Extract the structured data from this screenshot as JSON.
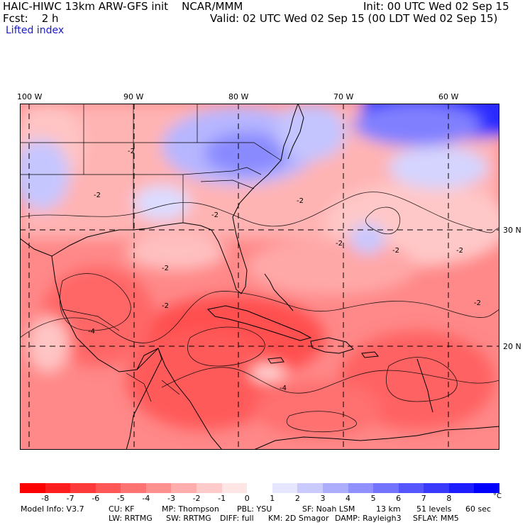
{
  "header": {
    "title_left": "HAIC-HIWC 13km ARW-GFS init    NCAR/MMM",
    "init": "Init: 00 UTC Wed 02 Sep 15",
    "fcst": "Fcst:    2 h",
    "valid": "Valid: 02 UTC Wed 02 Sep 15 (00 LDT Wed 02 Sep 15)",
    "field": "Lifted index"
  },
  "map": {
    "lon_labels": [
      "100 W",
      "90 W",
      "80 W",
      "70 W",
      "60 W"
    ],
    "lat_labels": [
      "30 N",
      "20 N"
    ],
    "contour_labels": [
      "-2",
      "-4"
    ]
  },
  "colorbar": {
    "ticks": [
      "-8",
      "-7",
      "-6",
      "-5",
      "-4",
      "-3",
      "-2",
      "-1",
      "0",
      "1",
      "2",
      "3",
      "4",
      "5",
      "6",
      "7",
      "8"
    ],
    "unit": "°C",
    "colors": [
      "#ff0000",
      "#ff1d1d",
      "#ff3a3a",
      "#ff5656",
      "#ff7373",
      "#ff9090",
      "#ffadad",
      "#ffcaca",
      "#ffe6e6",
      "#ffffff",
      "#e6e6ff",
      "#cacaff",
      "#adadff",
      "#9090ff",
      "#7373ff",
      "#5656ff",
      "#3a3aff",
      "#1d1dff",
      "#0000ff"
    ]
  },
  "model_info": {
    "line1": [
      "Model Info: V3.7",
      "CU: KF",
      "MP: Thompson",
      "PBL: YSU",
      "SF: Noah LSM",
      "13 km",
      "51 levels",
      "60 sec"
    ],
    "line2": [
      "LW: RRTMG",
      "SW: RRTMG",
      "DIFF: full",
      "KM: 2D Smagor",
      "DAMP: Rayleigh3",
      "SFLAY: MM5"
    ]
  }
}
